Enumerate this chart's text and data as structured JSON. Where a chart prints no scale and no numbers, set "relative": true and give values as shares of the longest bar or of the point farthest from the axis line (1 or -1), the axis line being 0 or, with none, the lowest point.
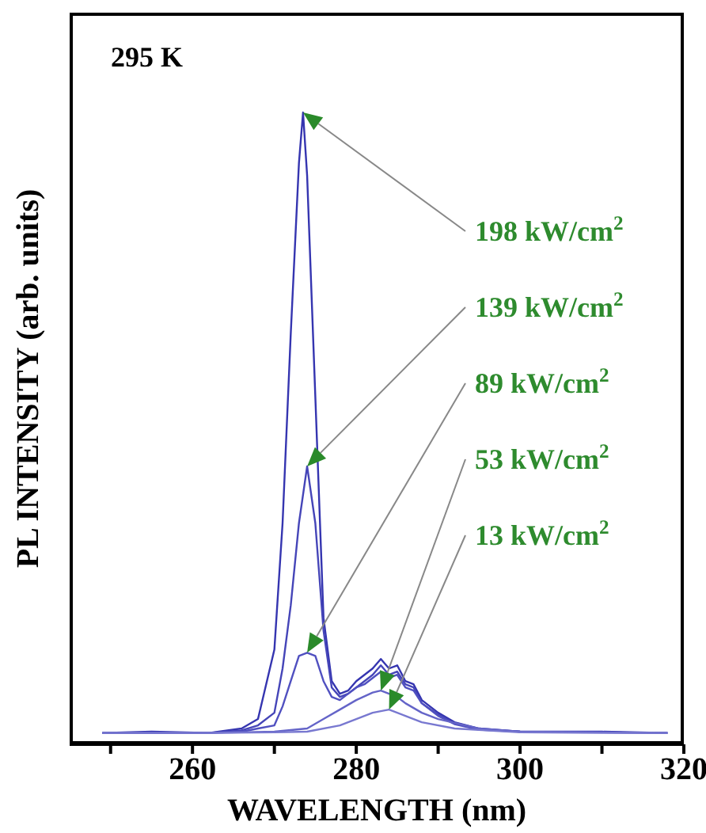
{
  "chart_data": {
    "type": "line",
    "relative": true,
    "xlabel": "WAVELENGTH (nm)",
    "ylabel": "PL INTENSITY (arb. units)",
    "xlim": [
      245,
      320
    ],
    "xticks": [
      {
        "value": 250,
        "label": null
      },
      260,
      {
        "value": 270,
        "label": null
      },
      280,
      {
        "value": 290,
        "label": null
      },
      300,
      {
        "value": 310,
        "label": null
      },
      320
    ],
    "series": [
      {
        "color": "#3535b0",
        "x": [
          249,
          255,
          262,
          266,
          268,
          270,
          271,
          272,
          273,
          273.5,
          274,
          275,
          276,
          277,
          278,
          279,
          280,
          281,
          282,
          283,
          284,
          285,
          286,
          287,
          288,
          290,
          292,
          295,
          300,
          310,
          318
        ],
        "values": [
          0.018,
          0.02,
          0.018,
          0.025,
          0.04,
          0.15,
          0.35,
          0.65,
          0.92,
          1.0,
          0.9,
          0.55,
          0.2,
          0.1,
          0.08,
          0.085,
          0.1,
          0.11,
          0.12,
          0.135,
          0.12,
          0.125,
          0.1,
          0.095,
          0.07,
          0.05,
          0.035,
          0.025,
          0.02,
          0.02,
          0.018
        ]
      },
      {
        "color": "#4545b8",
        "x": [
          249,
          262,
          266,
          268,
          270,
          271,
          272,
          273,
          274,
          275,
          276,
          277,
          278,
          279,
          280,
          281,
          282,
          283,
          284,
          285,
          286,
          287,
          288,
          290,
          292,
          295,
          300,
          310,
          318
        ],
        "values": [
          0.018,
          0.018,
          0.022,
          0.03,
          0.05,
          0.12,
          0.22,
          0.35,
          0.44,
          0.35,
          0.18,
          0.09,
          0.075,
          0.08,
          0.09,
          0.1,
          0.11,
          0.125,
          0.11,
          0.115,
          0.095,
          0.09,
          0.065,
          0.047,
          0.033,
          0.024,
          0.02,
          0.019,
          0.018
        ]
      },
      {
        "color": "#5050c0",
        "x": [
          249,
          262,
          266,
          268,
          270,
          271,
          272,
          273,
          274,
          275,
          276,
          277,
          278,
          279,
          280,
          281,
          282,
          283,
          284,
          285,
          286,
          287,
          288,
          290,
          292,
          295,
          300,
          310,
          318
        ],
        "values": [
          0.018,
          0.018,
          0.02,
          0.025,
          0.03,
          0.06,
          0.1,
          0.14,
          0.145,
          0.14,
          0.1,
          0.075,
          0.07,
          0.08,
          0.09,
          0.095,
          0.105,
          0.115,
          0.105,
          0.11,
          0.09,
          0.085,
          0.065,
          0.045,
          0.032,
          0.023,
          0.02,
          0.019,
          0.018
        ]
      },
      {
        "color": "#6464c8",
        "x": [
          249,
          262,
          270,
          274,
          276,
          278,
          280,
          282,
          283,
          284,
          285,
          286,
          288,
          290,
          295,
          300,
          310,
          318
        ],
        "values": [
          0.018,
          0.018,
          0.02,
          0.025,
          0.04,
          0.055,
          0.07,
          0.082,
          0.085,
          0.08,
          0.075,
          0.065,
          0.05,
          0.04,
          0.025,
          0.02,
          0.019,
          0.018
        ]
      },
      {
        "color": "#7878d0",
        "x": [
          249,
          262,
          270,
          274,
          278,
          280,
          282,
          284,
          286,
          288,
          292,
          300,
          310,
          318
        ],
        "values": [
          0.018,
          0.018,
          0.019,
          0.02,
          0.03,
          0.04,
          0.05,
          0.055,
          0.045,
          0.035,
          0.025,
          0.019,
          0.018,
          0.018
        ]
      }
    ],
    "annotations": [
      "295 K",
      "198 kW/cm$^{2}$",
      "139 kW/cm$^{2}$",
      "89 kW/cm$^{2}$",
      "53 kW/cm$^{2}$",
      "13 kW/cm$^{2}$"
    ]
  }
}
